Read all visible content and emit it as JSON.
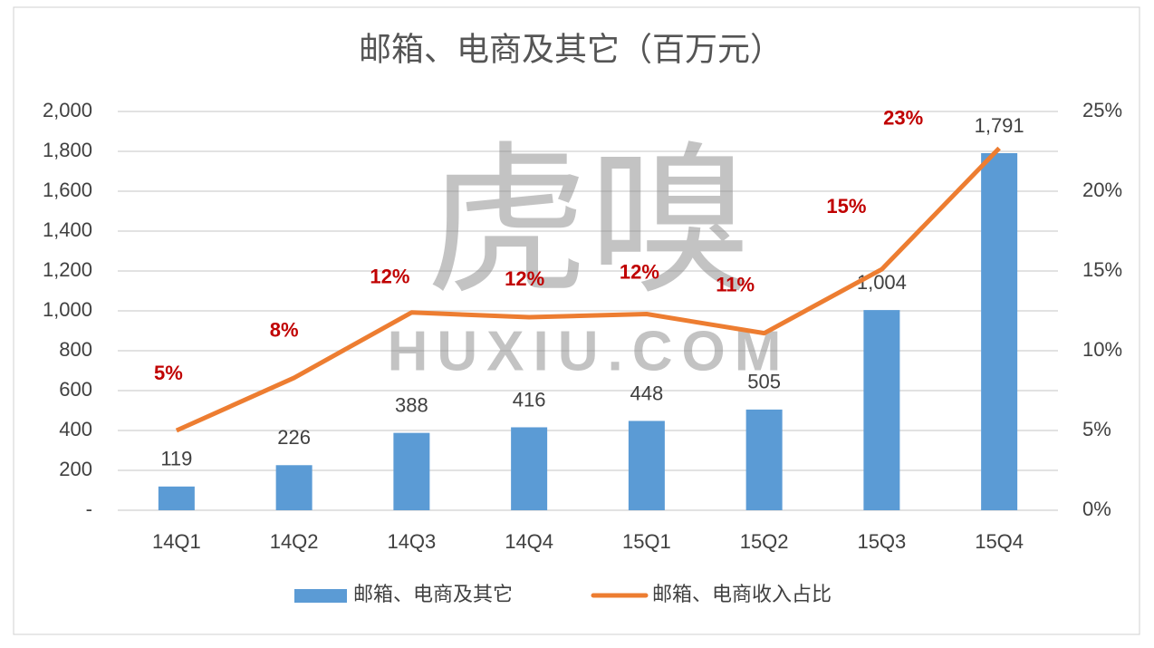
{
  "chart_data": {
    "type": "bar-line",
    "title": "邮箱、电商及其它（百万元）",
    "watermark": [
      "虎嗅",
      "HUXIU.COM"
    ],
    "categories": [
      "14Q1",
      "14Q2",
      "14Q3",
      "14Q4",
      "15Q1",
      "15Q2",
      "15Q3",
      "15Q4"
    ],
    "series": [
      {
        "name": "邮箱、电商及其它",
        "kind": "bar",
        "color": "#5b9bd5",
        "values": [
          119,
          226,
          388,
          416,
          448,
          505,
          1004,
          1791
        ],
        "value_labels": [
          "119",
          "226",
          "388",
          "416",
          "448",
          "505",
          "1,004",
          "1,791"
        ]
      },
      {
        "name": "邮箱、电商收入占比",
        "kind": "line",
        "axis": "y2",
        "color": "#ed7d31",
        "label_color": "#c00000",
        "values": [
          5,
          8.3,
          12.4,
          12.1,
          12.3,
          11.1,
          15.1,
          22.7
        ],
        "value_labels": [
          "5%",
          "8%",
          "12%",
          "12%",
          "12%",
          "11%",
          "15%",
          "23%"
        ]
      }
    ],
    "ylim": [
      0,
      2000
    ],
    "yticks": [
      {
        "value": 0,
        "label": "-"
      },
      200,
      400,
      600,
      800,
      {
        "value": 1000,
        "label": "1,000"
      },
      {
        "value": 1200,
        "label": "1,200"
      },
      {
        "value": 1400,
        "label": "1,400"
      },
      {
        "value": 1600,
        "label": "1,600"
      },
      {
        "value": 1800,
        "label": "1,800"
      },
      {
        "value": 2000,
        "label": "2,000"
      }
    ],
    "y2lim": [
      0,
      25
    ],
    "y2ticks": [
      {
        "value": 0,
        "label": "0%"
      },
      {
        "value": 5,
        "label": "5%"
      },
      {
        "value": 10,
        "label": "10%"
      },
      {
        "value": 15,
        "label": "15%"
      },
      {
        "value": 20,
        "label": "20%"
      },
      {
        "value": 25,
        "label": "25%"
      }
    ],
    "grid": true,
    "legend": "bottom"
  }
}
